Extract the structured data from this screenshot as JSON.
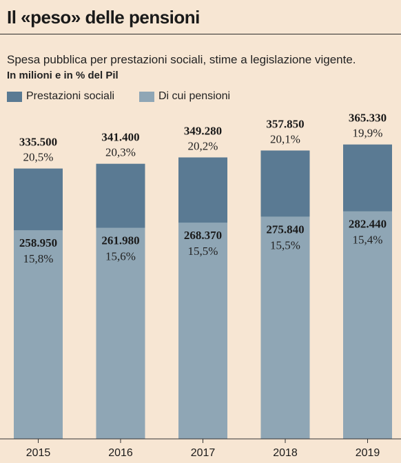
{
  "title": "Il «peso» delle pensioni",
  "subtitle": "Spesa pubblica per prestazioni sociali, stime a legislazione vigente.",
  "unit_label": "In milioni e in % del Pil",
  "colors": {
    "background": "#f7e6d3",
    "prestazioni": "#5a7a93",
    "pensioni": "#8fa6b5"
  },
  "chart_data": {
    "type": "bar",
    "stacking": "overlay",
    "categories": [
      "2015",
      "2016",
      "2017",
      "2018",
      "2019"
    ],
    "series": [
      {
        "name": "Prestazioni sociali",
        "values": [
          335500,
          341400,
          349280,
          357850,
          365330
        ],
        "labels": [
          "335.500",
          "341.400",
          "349.280",
          "357.850",
          "365.330"
        ],
        "pct_labels": [
          "20,5%",
          "20,3%",
          "20,2%",
          "20,1%",
          "19,9%"
        ]
      },
      {
        "name": "Di cui pensioni",
        "values": [
          258950,
          261980,
          268370,
          275840,
          282440
        ],
        "labels": [
          "258.950",
          "261.980",
          "268.370",
          "275.840",
          "282.440"
        ],
        "pct_labels": [
          "15,8%",
          "15,6%",
          "15,5%",
          "15,5%",
          "15,4%"
        ]
      }
    ],
    "ylim": [
      0,
      395000
    ],
    "grid": false,
    "legend": "top-left"
  }
}
